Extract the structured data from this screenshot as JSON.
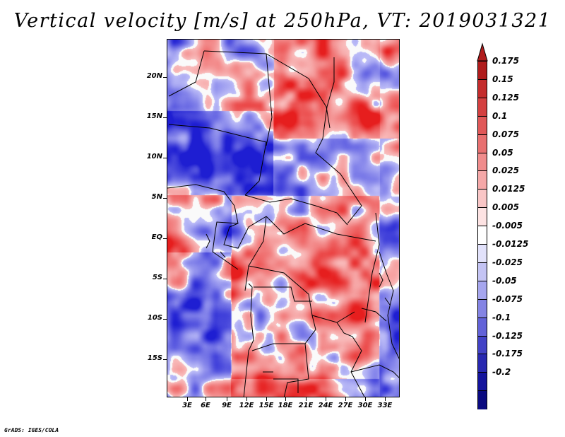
{
  "title": "Vertical velocity [m/s] at 250hPa, VT: 2019031321",
  "footer": "GrADS: IGES/COLA",
  "map": {
    "region": "Central Africa",
    "lat_labels": [
      "20N",
      "15N",
      "10N",
      "5N",
      "EQ",
      "5S",
      "10S",
      "15S"
    ],
    "lon_labels": [
      "3E",
      "6E",
      "9E",
      "12E",
      "15E",
      "18E",
      "21E",
      "24E",
      "27E",
      "30E",
      "33E"
    ]
  },
  "colorbar": {
    "labels": [
      "0.175",
      "0.15",
      "0.125",
      "0.1",
      "0.075",
      "0.05",
      "0.025",
      "0.0125",
      "0.005",
      "-0.005",
      "-0.0125",
      "-0.025",
      "-0.05",
      "-0.075",
      "-0.1",
      "-0.125",
      "-0.175",
      "-0.2"
    ],
    "colors": [
      "#b01c1c",
      "#c42c2c",
      "#d44040",
      "#e05858",
      "#e87070",
      "#f08c8c",
      "#f5a8a8",
      "#f9c6c6",
      "#fde3e3",
      "#ffffff",
      "#e2e2fb",
      "#c4c4f4",
      "#a6a6ee",
      "#8484e4",
      "#6262d8",
      "#4242c6",
      "#2828b0",
      "#14149c",
      "#0a0a80"
    ]
  }
}
